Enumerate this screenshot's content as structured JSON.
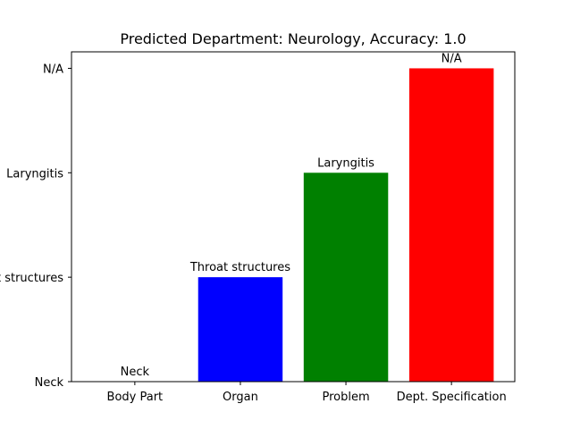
{
  "chart_data": {
    "type": "bar",
    "title": "Predicted Department: Neurology, Accuracy: 1.0",
    "xlabel": "",
    "ylabel": "",
    "categories": [
      "Body Part",
      "Organ",
      "Problem",
      "Dept. Specification"
    ],
    "y_categories": [
      "Neck",
      "Throat structures",
      "Laryngitis",
      "N/A"
    ],
    "values": [
      "Neck",
      "Throat structures",
      "Laryngitis",
      "N/A"
    ],
    "value_indices": [
      0,
      1,
      2,
      3
    ],
    "ylim": [
      0,
      3
    ],
    "grid": false,
    "bar_colors": [
      "#0000ff",
      "#0000ff",
      "#008000",
      "#ff0000"
    ],
    "data_labels": [
      "Neck",
      "Throat structures",
      "Laryngitis",
      "N/A"
    ]
  }
}
